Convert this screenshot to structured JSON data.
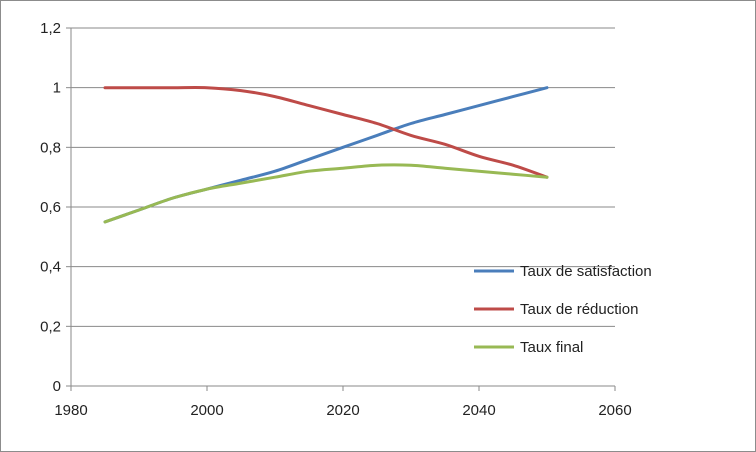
{
  "chart_data": {
    "type": "line",
    "title": "",
    "xlabel": "",
    "ylabel": "",
    "xlim": [
      1980,
      2060
    ],
    "ylim": [
      0,
      1.2
    ],
    "x_ticks": [
      "1980",
      "2000",
      "2020",
      "2040",
      "2060"
    ],
    "y_ticks": [
      "0",
      "0,2",
      "0,4",
      "0,6",
      "0,8",
      "1",
      "1,2"
    ],
    "grid": "horizontal",
    "legend_position": "right",
    "series": [
      {
        "name": "Taux de satisfaction",
        "color": "#4a7ebb",
        "points": [
          [
            1985,
            0.55
          ],
          [
            1990,
            0.59
          ],
          [
            1995,
            0.63
          ],
          [
            2000,
            0.66
          ],
          [
            2005,
            0.69
          ],
          [
            2010,
            0.72
          ],
          [
            2015,
            0.76
          ],
          [
            2020,
            0.8
          ],
          [
            2025,
            0.84
          ],
          [
            2030,
            0.88
          ],
          [
            2035,
            0.91
          ],
          [
            2040,
            0.94
          ],
          [
            2045,
            0.97
          ],
          [
            2050,
            1.0
          ]
        ]
      },
      {
        "name": "Taux de réduction",
        "color": "#be4b48",
        "points": [
          [
            1985,
            1.0
          ],
          [
            1990,
            1.0
          ],
          [
            1995,
            1.0
          ],
          [
            2000,
            1.0
          ],
          [
            2005,
            0.99
          ],
          [
            2010,
            0.97
          ],
          [
            2015,
            0.94
          ],
          [
            2020,
            0.91
          ],
          [
            2025,
            0.88
          ],
          [
            2030,
            0.84
          ],
          [
            2035,
            0.81
          ],
          [
            2040,
            0.77
          ],
          [
            2045,
            0.74
          ],
          [
            2050,
            0.7
          ]
        ]
      },
      {
        "name": "Taux final",
        "color": "#98b954",
        "points": [
          [
            1985,
            0.55
          ],
          [
            1990,
            0.59
          ],
          [
            1995,
            0.63
          ],
          [
            2000,
            0.66
          ],
          [
            2005,
            0.68
          ],
          [
            2010,
            0.7
          ],
          [
            2015,
            0.72
          ],
          [
            2020,
            0.73
          ],
          [
            2025,
            0.74
          ],
          [
            2030,
            0.74
          ],
          [
            2035,
            0.73
          ],
          [
            2040,
            0.72
          ],
          [
            2045,
            0.71
          ],
          [
            2050,
            0.7
          ]
        ]
      }
    ]
  }
}
